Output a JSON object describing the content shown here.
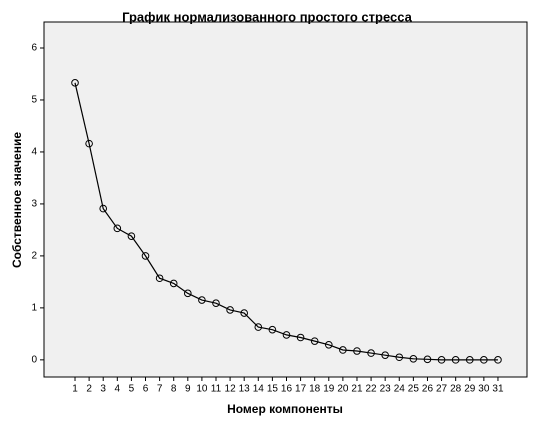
{
  "chart_data": {
    "type": "line",
    "title": "График нормализованного простого стресса",
    "x_label": "Номер компоненты",
    "y_label": "Собственное значение",
    "x": [
      1,
      2,
      3,
      4,
      5,
      6,
      7,
      8,
      9,
      10,
      11,
      12,
      13,
      14,
      15,
      16,
      17,
      18,
      19,
      20,
      21,
      22,
      23,
      24,
      25,
      26,
      27,
      28,
      29,
      30,
      31
    ],
    "series": [
      {
        "name": "Собственное значение",
        "color": "#000000",
        "values": [
          5.33,
          4.16,
          2.91,
          2.53,
          2.38,
          2.0,
          1.57,
          1.47,
          1.28,
          1.15,
          1.09,
          0.96,
          0.9,
          0.63,
          0.58,
          0.48,
          0.43,
          0.36,
          0.29,
          0.19,
          0.17,
          0.13,
          0.09,
          0.05,
          0.02,
          0.01,
          0.0,
          0.0,
          0.0,
          0.0,
          0.0
        ]
      }
    ],
    "xlim": [
      -1.2,
      33.06
    ],
    "xticks": [
      1,
      2,
      3,
      4,
      5,
      6,
      7,
      8,
      9,
      10,
      11,
      12,
      13,
      14,
      15,
      16,
      17,
      18,
      19,
      20,
      21,
      22,
      23,
      24,
      25,
      26,
      27,
      28,
      29,
      30,
      31
    ],
    "ylim": [
      -0.33,
      6.5
    ],
    "yticks": [
      0,
      1,
      2,
      3,
      4,
      5,
      6
    ],
    "grid": false
  }
}
